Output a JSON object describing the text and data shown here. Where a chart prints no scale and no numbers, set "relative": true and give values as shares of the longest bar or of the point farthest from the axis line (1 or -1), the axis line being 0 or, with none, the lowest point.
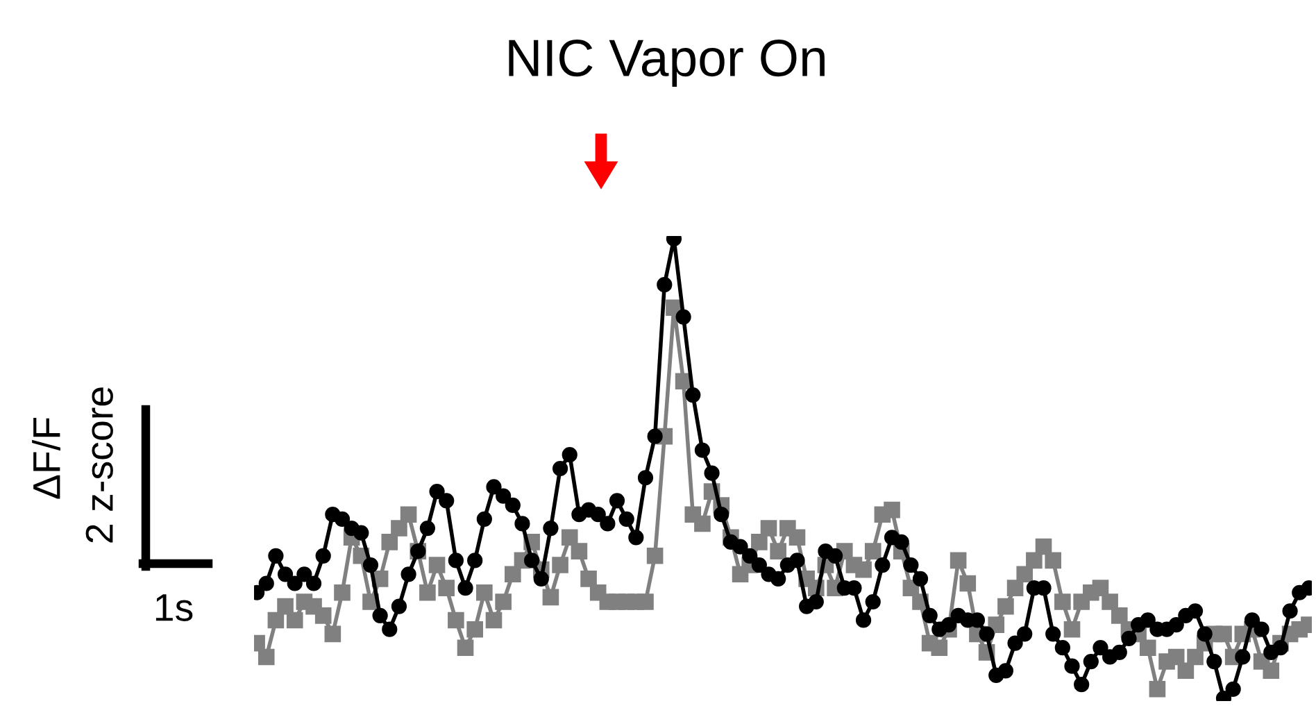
{
  "chart_data": {
    "type": "line",
    "relative": true,
    "title": "NIC Vapor On",
    "ylabel": "ΔF/F",
    "annotations": [
      "2 z-score",
      "1s"
    ],
    "line_style": "solid",
    "tick_labels": false,
    "categories": [
      null,
      null,
      null,
      null,
      null,
      null,
      null,
      null,
      null,
      null,
      null,
      null,
      null,
      null,
      null,
      null,
      null,
      null,
      null,
      null,
      null,
      null,
      null,
      null,
      null,
      null,
      null,
      null,
      null,
      null,
      null,
      null,
      null,
      null,
      null,
      null,
      null,
      null,
      null,
      null,
      null,
      null,
      null,
      null,
      null,
      null,
      null,
      null,
      null,
      null,
      null,
      null,
      null,
      null,
      null,
      null,
      null,
      null,
      null,
      null,
      null,
      null,
      null,
      null,
      null,
      null,
      null,
      null,
      null,
      null,
      null,
      null,
      null,
      null,
      null,
      null,
      null,
      null,
      null,
      null,
      null,
      null,
      null,
      null,
      null,
      null,
      null,
      null,
      null,
      null,
      null,
      null,
      null,
      null,
      null,
      null,
      null,
      null,
      null,
      null,
      null,
      null,
      null,
      null,
      null,
      null,
      null,
      null,
      null,
      null,
      null,
      null
    ],
    "series": [
      {
        "color": "#000000",
        "marker": "circle",
        "values": [
          0.23,
          0.25,
          0.31,
          0.27,
          0.25,
          0.27,
          0.25,
          0.31,
          0.4,
          0.39,
          0.37,
          0.36,
          0.29,
          0.18,
          0.15,
          0.2,
          0.27,
          0.32,
          0.37,
          0.45,
          0.43,
          0.3,
          0.24,
          0.3,
          0.39,
          0.46,
          0.44,
          0.42,
          0.38,
          0.3,
          0.26,
          0.37,
          0.5,
          0.53,
          0.4,
          0.41,
          0.4,
          0.38,
          0.43,
          0.39,
          0.35,
          0.48,
          0.57,
          0.9,
          1,
          0.83,
          0.66,
          0.54,
          0.49,
          0.4,
          0.34,
          0.33,
          0.31,
          0.29,
          0.27,
          0.26,
          0.29,
          0.3,
          0.2,
          0.21,
          0.32,
          0.31,
          0.24,
          0.24,
          0.17,
          0.21,
          0.29,
          0.35,
          0.34,
          0.29,
          0.26,
          0.18,
          0.15,
          0.16,
          0.18,
          0.17,
          0.17,
          0.14,
          0.05,
          0.06,
          0.12,
          0.14,
          0.24,
          0.24,
          0.14,
          0.11,
          0.07,
          0.03,
          0.08,
          0.11,
          0.09,
          0.1,
          0.13,
          0.16,
          0.17,
          0.15,
          0.15,
          0.16,
          0.18,
          0.19,
          0.14,
          0.08,
          0.0,
          0.02,
          0.09,
          0.17,
          0.15,
          0.1,
          0.11,
          0.19,
          0.23,
          0.24
        ]
      },
      {
        "color": "#808080",
        "marker": "square",
        "values": [
          0.12,
          0.09,
          0.17,
          0.2,
          0.17,
          0.21,
          0.2,
          0.18,
          0.14,
          0.23,
          0.35,
          0.31,
          0.21,
          0.26,
          0.34,
          0.37,
          0.4,
          0.32,
          0.23,
          0.29,
          0.24,
          0.17,
          0.11,
          0.15,
          0.23,
          0.17,
          0.21,
          0.27,
          0.3,
          0.34,
          0.28,
          0.22,
          0.29,
          0.35,
          0.32,
          0.26,
          0.23,
          0.21,
          0.21,
          0.21,
          0.21,
          0.21,
          0.31,
          0.57,
          0.85,
          0.69,
          0.4,
          0.38,
          0.45,
          0.42,
          0.35,
          0.27,
          0.29,
          0.34,
          0.37,
          0.32,
          0.37,
          0.35,
          0.26,
          0.24,
          0.29,
          0.24,
          0.32,
          0.29,
          0.28,
          0.32,
          0.4,
          0.41,
          0.32,
          0.24,
          0.21,
          0.12,
          0.11,
          0.15,
          0.3,
          0.25,
          0.14,
          0.1,
          0.16,
          0.2,
          0.24,
          0.27,
          0.3,
          0.33,
          0.3,
          0.21,
          0.15,
          0.21,
          0.23,
          0.24,
          0.21,
          0.18,
          0.15,
          0.14,
          0.11,
          0.02,
          0.08,
          0.09,
          0.06,
          0.09,
          0.12,
          0.14,
          0.14,
          0.09,
          0.14,
          0.15,
          0.08,
          0.06,
          0.12,
          0.14,
          0.15,
          0.16
        ]
      }
    ]
  }
}
